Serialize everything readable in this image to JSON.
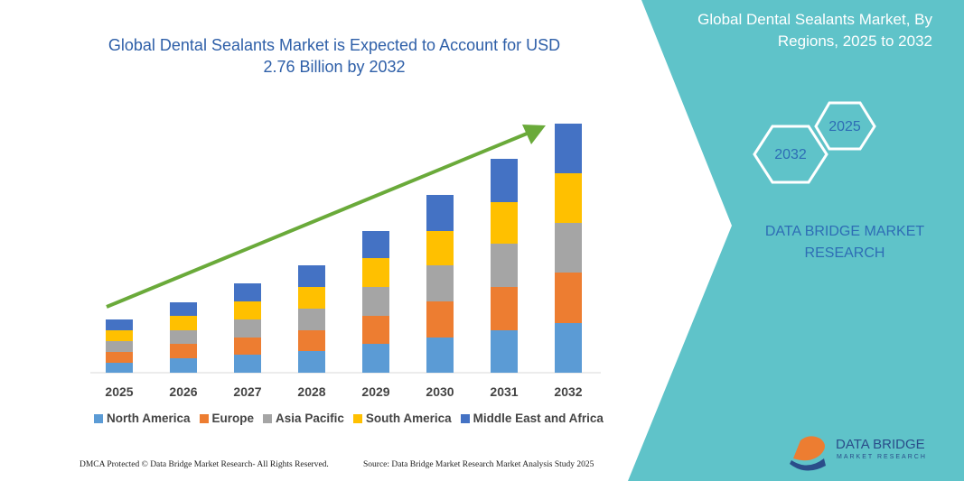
{
  "chart_data": {
    "type": "stacked_bar",
    "title": "Global Dental Sealants Market is Expected to Account for USD 2.76 Billion by 2032",
    "categories": [
      "2025",
      "2026",
      "2027",
      "2028",
      "2029",
      "2030",
      "2031",
      "2032"
    ],
    "series": [
      {
        "name": "North America",
        "color": "#5b9bd5",
        "values": [
          11,
          16,
          20,
          24,
          32,
          39,
          47,
          55
        ]
      },
      {
        "name": "Europe",
        "color": "#ed7d31",
        "values": [
          12,
          16,
          19,
          23,
          31,
          40,
          48,
          56
        ]
      },
      {
        "name": "Asia Pacific",
        "color": "#a5a5a5",
        "values": [
          12,
          15,
          20,
          24,
          32,
          40,
          48,
          55
        ]
      },
      {
        "name": "South America",
        "color": "#ffc000",
        "values": [
          12,
          16,
          20,
          24,
          32,
          38,
          46,
          55
        ]
      },
      {
        "name": "Middle East and Africa",
        "color": "#4472c4",
        "values": [
          12,
          15,
          20,
          24,
          30,
          40,
          48,
          55
        ]
      }
    ]
  },
  "panel": {
    "title": "Global Dental Sealants Market, By Regions, 2025 to 2032",
    "hex_labels": [
      "2032",
      "2025"
    ],
    "brand": "DATA BRIDGE MARKET RESEARCH"
  },
  "logo": {
    "name": "DATA BRIDGE",
    "tagline": "MARKET RESEARCH"
  },
  "footer": {
    "left": "DMCA Protected © Data Bridge Market Research- All Rights Reserved.",
    "right": "Source: Data Bridge Market Research Market Analysis Study 2025"
  }
}
